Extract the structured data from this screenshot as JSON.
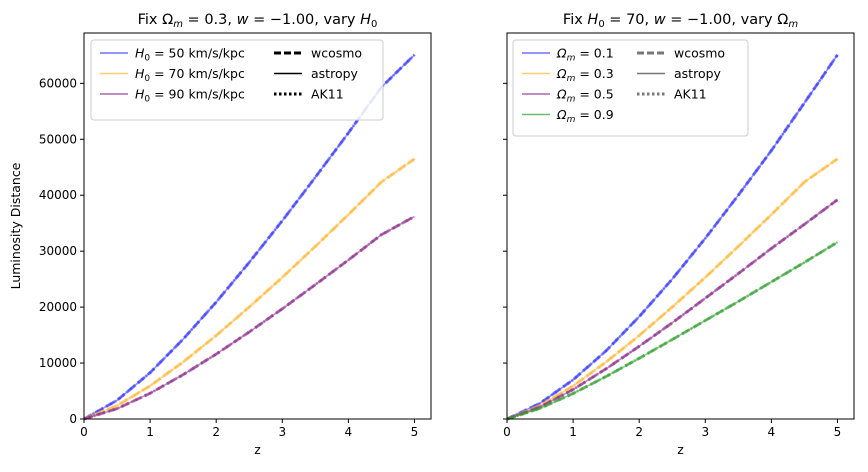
{
  "figure": {
    "ylabel_shared": "Luminosity Distance"
  },
  "chart_data": [
    {
      "type": "line",
      "title_parts": {
        "prefix": "Fix Ω",
        "sub": "m",
        "mid": " = 0.3, ",
        "w_sym": "w",
        "mid2": " = −1.00, vary ",
        "h_sym": "H",
        "h_sub": "0"
      },
      "xlabel": "z",
      "ylabel": "Luminosity Distance",
      "xlim": [
        0,
        5.25
      ],
      "ylim": [
        0,
        69000
      ],
      "xticks": [
        0,
        1,
        2,
        3,
        4,
        5
      ],
      "yticks": [
        0,
        10000,
        20000,
        30000,
        40000,
        50000,
        60000
      ],
      "grid": false,
      "legend_placement": "top-left",
      "series": [
        {
          "name": "H0 = 50 km/s/kpc",
          "legend_sym": "H",
          "legend_sub": "0",
          "legend_rest": " = 50 km/s/kpc",
          "color": "#3333ff",
          "x": [
            0,
            0.5,
            1,
            1.5,
            2,
            2.5,
            3,
            3.5,
            4,
            4.5,
            5
          ],
          "y": [
            0,
            3320,
            8280,
            14260,
            20900,
            28000,
            35450,
            43200,
            51150,
            59310,
            65100
          ]
        },
        {
          "name": "H0 = 70 km/s/kpc",
          "legend_sym": "H",
          "legend_sub": "0",
          "legend_rest": " = 70 km/s/kpc",
          "color": "#ffb733",
          "x": [
            0,
            0.5,
            1,
            1.5,
            2,
            2.5,
            3,
            3.5,
            4,
            4.5,
            5
          ],
          "y": [
            0,
            2370,
            5910,
            10190,
            14930,
            20000,
            25320,
            30860,
            36540,
            42360,
            46500
          ]
        },
        {
          "name": "H0 = 90 km/s/kpc",
          "legend_sym": "H",
          "legend_sub": "0",
          "legend_rest": " = 90 km/s/kpc",
          "color": "#8b2a8b",
          "x": [
            0,
            0.5,
            1,
            1.5,
            2,
            2.5,
            3,
            3.5,
            4,
            4.5,
            5
          ],
          "y": [
            0,
            1840,
            4600,
            7920,
            11610,
            15560,
            19700,
            24000,
            28420,
            32950,
            36200
          ]
        }
      ],
      "style_legend": [
        {
          "label": "wcosmo",
          "dash": "dashed"
        },
        {
          "label": "astropy",
          "dash": "solid"
        },
        {
          "label": "AK11",
          "dash": "dotted"
        }
      ]
    },
    {
      "type": "line",
      "title_parts": {
        "prefix": "Fix ",
        "h_sym": "H",
        "h_sub": "0",
        "mid": " = 70, ",
        "w_sym": "w",
        "mid2": " = −1.00, vary Ω",
        "sub": "m"
      },
      "xlabel": "z",
      "ylabel": "",
      "xlim": [
        0,
        5.25
      ],
      "ylim": [
        0,
        69000
      ],
      "xticks": [
        0,
        1,
        2,
        3,
        4,
        5
      ],
      "yticks": [
        0,
        10000,
        20000,
        30000,
        40000,
        50000,
        60000
      ],
      "grid": false,
      "legend_placement": "top-left",
      "series": [
        {
          "name": "Ωm = 0.1",
          "legend_sym": "Ω",
          "legend_sub": "m",
          "legend_rest": " = 0.1",
          "color": "#3333ff",
          "x": [
            0,
            0.5,
            1,
            1.5,
            2,
            2.5,
            3,
            3.5,
            4,
            4.5,
            5
          ],
          "y": [
            0,
            2800,
            7000,
            12200,
            18300,
            25000,
            32300,
            40000,
            48000,
            56500,
            65100
          ]
        },
        {
          "name": "Ωm = 0.3",
          "legend_sym": "Ω",
          "legend_sub": "m",
          "legend_rest": " = 0.3",
          "color": "#ffb733",
          "x": [
            0,
            0.5,
            1,
            1.5,
            2,
            2.5,
            3,
            3.5,
            4,
            4.5,
            5
          ],
          "y": [
            0,
            2370,
            5910,
            10190,
            14930,
            20000,
            25320,
            30860,
            36540,
            42360,
            46500
          ]
        },
        {
          "name": "Ωm = 0.5",
          "legend_sym": "Ω",
          "legend_sub": "m",
          "legend_rest": " = 0.5",
          "color": "#8b2a8b",
          "x": [
            0,
            0.5,
            1,
            1.5,
            2,
            2.5,
            3,
            3.5,
            4,
            4.5,
            5
          ],
          "y": [
            0,
            2150,
            5280,
            8980,
            13000,
            17200,
            21600,
            26000,
            30500,
            34800,
            39200
          ]
        },
        {
          "name": "Ωm = 0.9",
          "legend_sym": "Ω",
          "legend_sub": "m",
          "legend_rest": " = 0.9",
          "color": "#2e9e2e",
          "x": [
            0,
            0.5,
            1,
            1.5,
            2,
            2.5,
            3,
            3.5,
            4,
            4.5,
            5
          ],
          "y": [
            0,
            1900,
            4550,
            7600,
            10850,
            14200,
            17600,
            21000,
            24500,
            28000,
            31600
          ]
        }
      ],
      "style_legend": [
        {
          "label": "wcosmo",
          "dash": "dashed"
        },
        {
          "label": "astropy",
          "dash": "solid"
        },
        {
          "label": "AK11",
          "dash": "dotted"
        }
      ]
    }
  ]
}
